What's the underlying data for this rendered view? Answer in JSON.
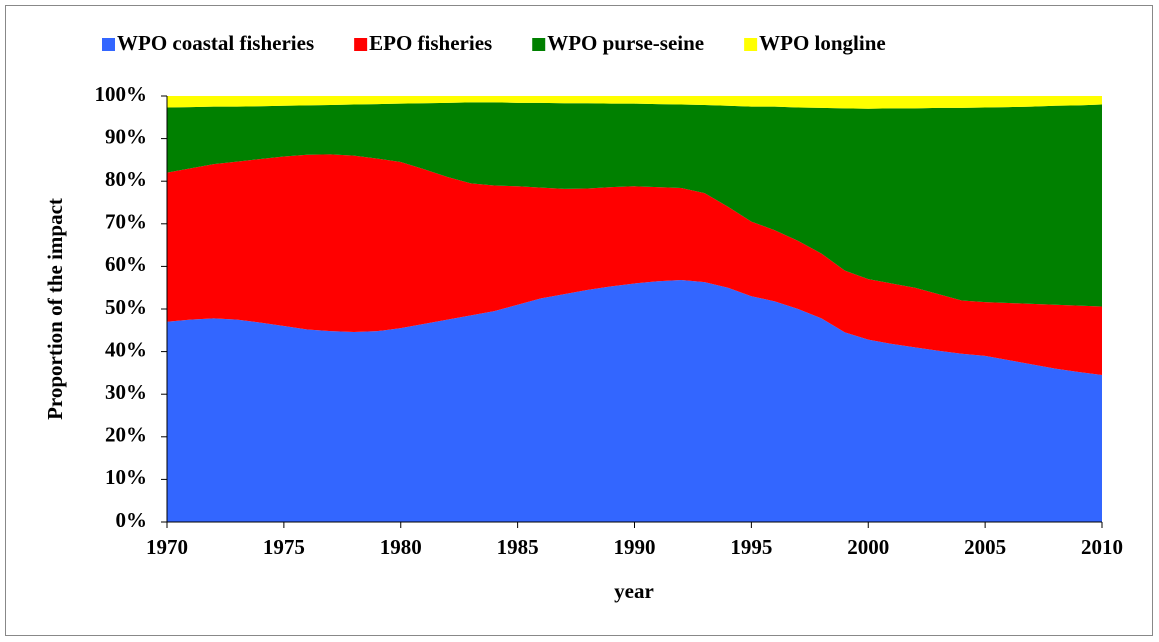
{
  "chart_data": {
    "type": "stacked-area",
    "x_label": "year",
    "y_label": "Proportion of the impact",
    "x": [
      1970,
      1971,
      1972,
      1973,
      1974,
      1975,
      1976,
      1977,
      1978,
      1979,
      1980,
      1981,
      1982,
      1983,
      1984,
      1985,
      1986,
      1987,
      1988,
      1989,
      1990,
      1991,
      1992,
      1993,
      1994,
      1995,
      1996,
      1997,
      1998,
      1999,
      2000,
      2001,
      2002,
      2003,
      2004,
      2005,
      2006,
      2007,
      2008,
      2009,
      2010
    ],
    "series": [
      {
        "name": "WPO coastal fisheries",
        "color": "#3366ff",
        "values": [
          47,
          47.5,
          47.8,
          47.5,
          46.8,
          46,
          45.2,
          44.8,
          44.6,
          44.8,
          45.5,
          46.5,
          47.5,
          48.5,
          49.5,
          51,
          52.5,
          53.5,
          54.5,
          55.3,
          56,
          56.5,
          56.8,
          56.3,
          55,
          53,
          51.8,
          50,
          47.8,
          44.5,
          42.8,
          41.8,
          41,
          40.2,
          39.5,
          39,
          38,
          37,
          36,
          35.2,
          34.5
        ]
      },
      {
        "name": "EPO fisheries",
        "color": "#ff0000",
        "values": [
          35,
          35.5,
          36.2,
          37.1,
          38.4,
          39.8,
          41,
          41.5,
          41.4,
          40.5,
          39,
          36.3,
          33.5,
          31,
          29.5,
          27.8,
          26,
          24.7,
          23.8,
          23.3,
          22.8,
          22.1,
          21.6,
          20.9,
          19,
          17.5,
          16.7,
          16,
          15.2,
          14.5,
          14.2,
          14.2,
          14,
          13.3,
          12.5,
          12.6,
          13.4,
          14.2,
          15,
          15.6,
          16.1
        ]
      },
      {
        "name": "WPO purse-seine",
        "color": "#008000",
        "values": [
          15.3,
          14.4,
          13.5,
          12.9,
          12.4,
          11.9,
          11.6,
          11.6,
          12,
          12.8,
          13.7,
          15.5,
          17.4,
          19,
          19.5,
          19.6,
          19.9,
          20.1,
          20,
          19.6,
          19.4,
          19.5,
          19.6,
          20.7,
          23.7,
          27,
          29,
          31.3,
          34.2,
          38.1,
          40,
          41.1,
          42.1,
          43.7,
          45.2,
          45.7,
          46,
          46.3,
          46.7,
          47,
          47.4
        ]
      },
      {
        "name": "WPO longline",
        "color": "#ffff00",
        "values": [
          2.7,
          2.6,
          2.5,
          2.5,
          2.4,
          2.3,
          2.2,
          2.1,
          2,
          1.9,
          1.8,
          1.7,
          1.6,
          1.5,
          1.5,
          1.6,
          1.6,
          1.7,
          1.7,
          1.8,
          1.8,
          1.9,
          2,
          2.1,
          2.3,
          2.5,
          2.5,
          2.7,
          2.8,
          2.9,
          3,
          2.9,
          2.9,
          2.8,
          2.8,
          2.7,
          2.6,
          2.5,
          2.3,
          2.2,
          2
        ]
      }
    ],
    "xlim": [
      1970,
      2010
    ],
    "xticks": [
      1970,
      1975,
      1980,
      1985,
      1990,
      1995,
      2000,
      2005,
      2010
    ],
    "ylim": [
      0,
      100
    ],
    "yticks": [
      {
        "value": 0,
        "label": "0%"
      },
      {
        "value": 10,
        "label": "10%"
      },
      {
        "value": 20,
        "label": "20%"
      },
      {
        "value": 30,
        "label": "30%"
      },
      {
        "value": 40,
        "label": "40%"
      },
      {
        "value": 50,
        "label": "50%"
      },
      {
        "value": 60,
        "label": "60%"
      },
      {
        "value": 70,
        "label": "70%"
      },
      {
        "value": 80,
        "label": "80%"
      },
      {
        "value": 90,
        "label": "90%"
      },
      {
        "value": 100,
        "label": "100%"
      }
    ],
    "legend": "top",
    "grid": false
  }
}
